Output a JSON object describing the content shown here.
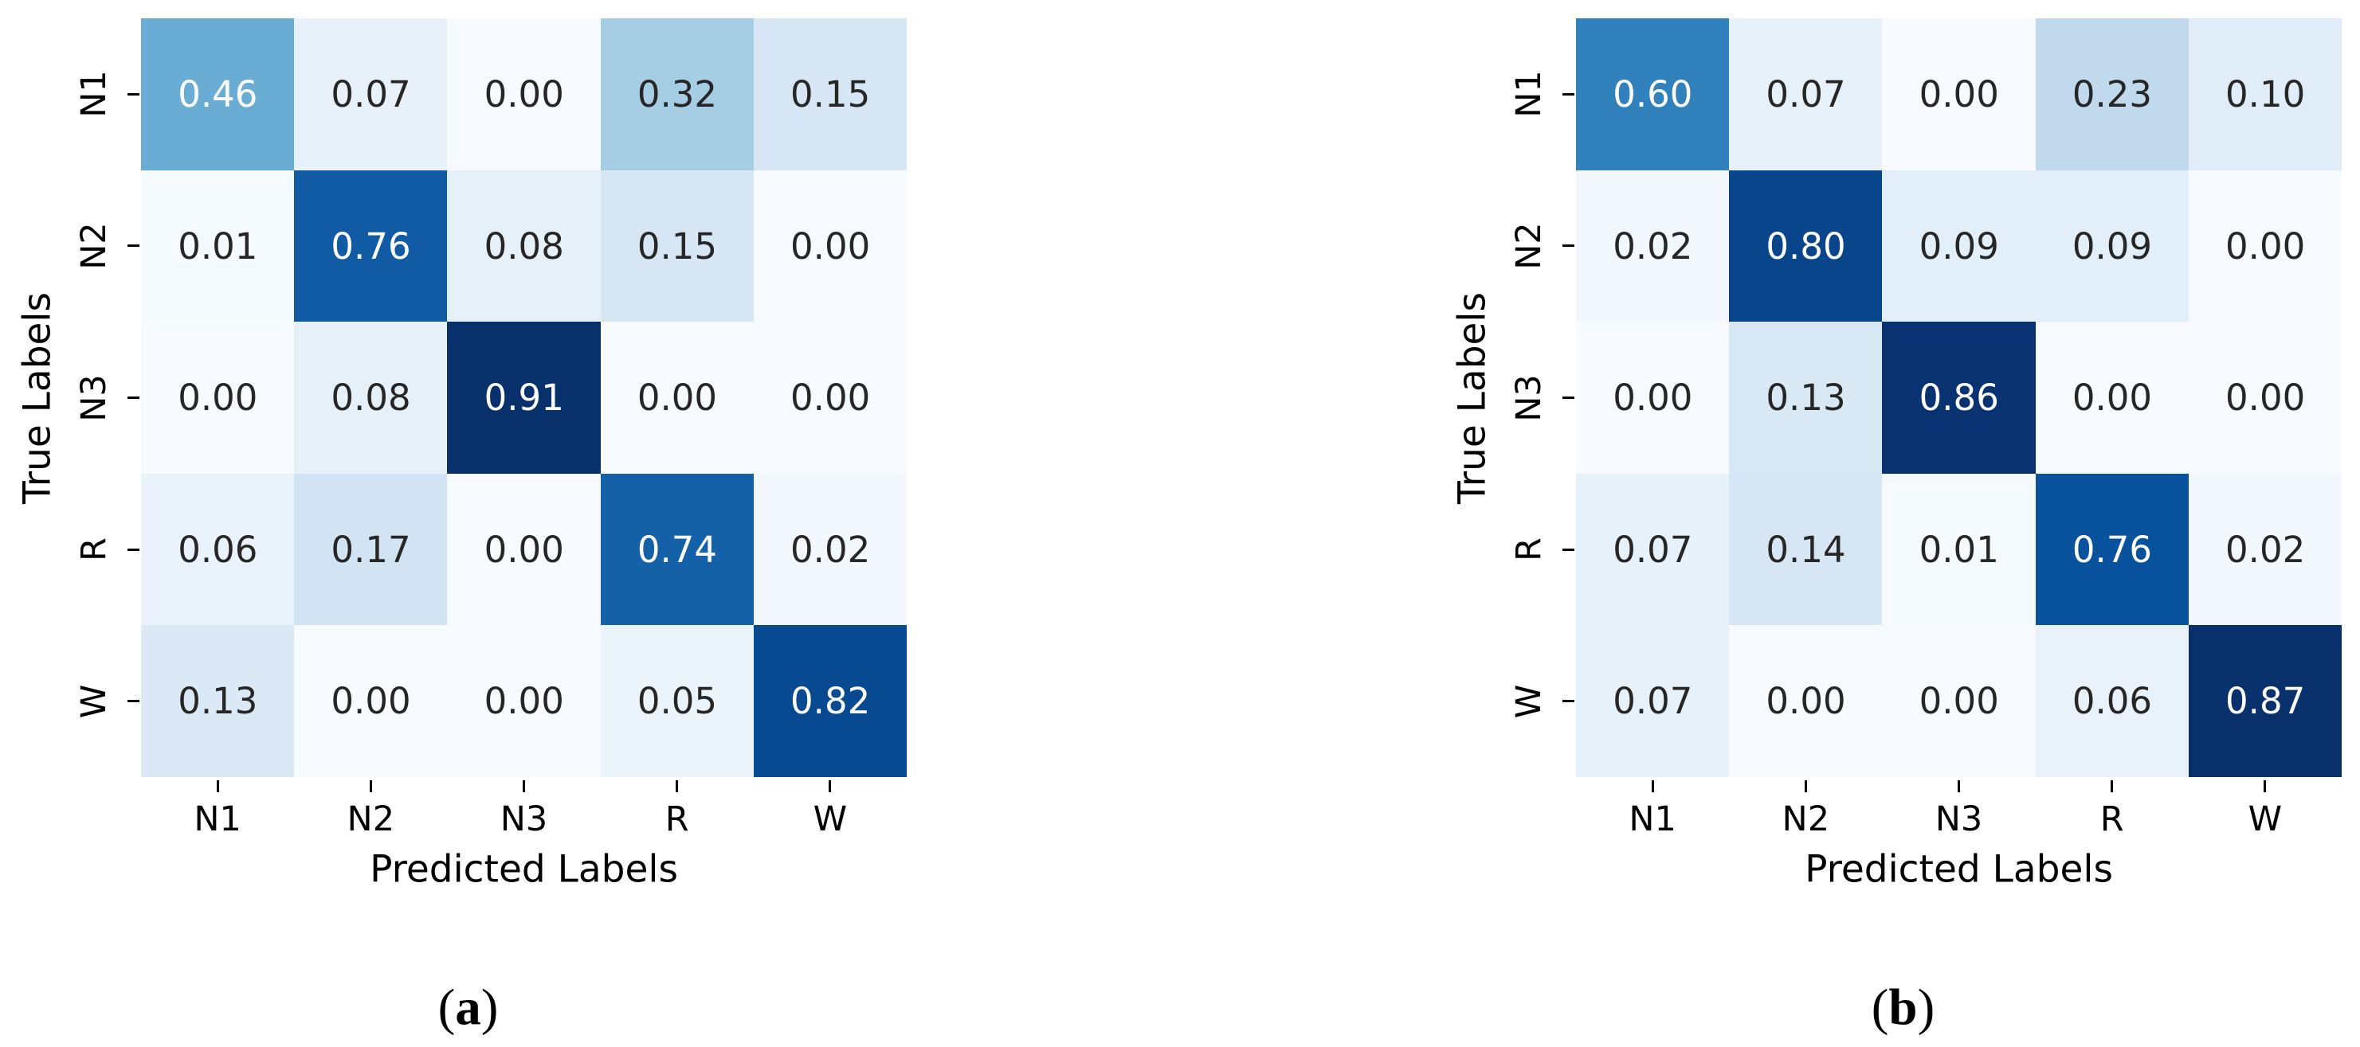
{
  "page": {
    "background": "#ffffff"
  },
  "colors": {
    "annotation_dark": "#262626",
    "annotation_light": "#ffffff",
    "axis_text": "#000000",
    "tick_mark": "#000000",
    "colormap_low": "#f7fbff",
    "colormap_high": "#08306b"
  },
  "chart_data": [
    {
      "type": "heatmap",
      "panel_label": "(a)",
      "title": "",
      "xlabel": "Predicted Labels",
      "ylabel": "True Labels",
      "x_tick_labels": [
        "N1",
        "N2",
        "N3",
        "R",
        "W"
      ],
      "y_tick_labels": [
        "N1",
        "N2",
        "N3",
        "R",
        "W"
      ],
      "colormap": "Blues",
      "vmin": 0,
      "vmax": 0.91,
      "grid": false,
      "legend": "none",
      "annotation_decimals": 2,
      "rows": [
        [
          0.46,
          0.07,
          0.0,
          0.32,
          0.15
        ],
        [
          0.01,
          0.76,
          0.08,
          0.15,
          0.0
        ],
        [
          0.0,
          0.08,
          0.91,
          0.0,
          0.0
        ],
        [
          0.06,
          0.17,
          0.0,
          0.74,
          0.02
        ],
        [
          0.13,
          0.0,
          0.0,
          0.05,
          0.82
        ]
      ]
    },
    {
      "type": "heatmap",
      "panel_label": "(b)",
      "title": "",
      "xlabel": "Predicted Labels",
      "ylabel": "True Labels",
      "x_tick_labels": [
        "N1",
        "N2",
        "N3",
        "R",
        "W"
      ],
      "y_tick_labels": [
        "N1",
        "N2",
        "N3",
        "R",
        "W"
      ],
      "colormap": "Blues",
      "vmin": 0,
      "vmax": 0.87,
      "grid": false,
      "legend": "none",
      "annotation_decimals": 2,
      "rows": [
        [
          0.6,
          0.07,
          0.0,
          0.23,
          0.1
        ],
        [
          0.02,
          0.8,
          0.09,
          0.09,
          0.0
        ],
        [
          0.0,
          0.13,
          0.86,
          0.0,
          0.0
        ],
        [
          0.07,
          0.14,
          0.01,
          0.76,
          0.02
        ],
        [
          0.07,
          0.0,
          0.0,
          0.06,
          0.87
        ]
      ]
    }
  ]
}
